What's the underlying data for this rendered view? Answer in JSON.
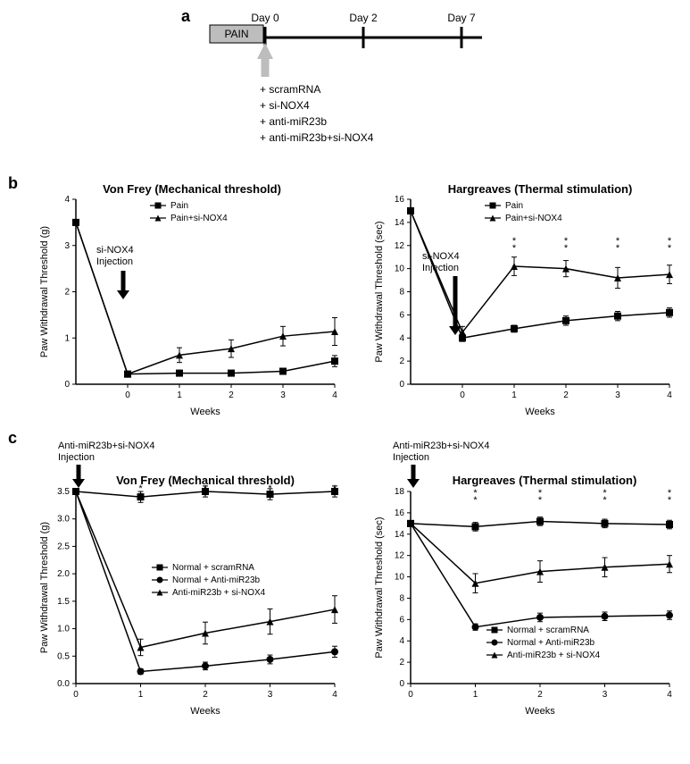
{
  "panel_a": {
    "label": "a",
    "pain_box": "PAIN",
    "ticks": [
      "Day 0",
      "Day 2",
      "Day 7"
    ],
    "conditions": [
      "+ scramRNA",
      "+ si-NOX4",
      "+ anti-miR23b",
      "+ anti-miR23b+si-NOX4"
    ],
    "colors": {
      "pain_fill": "#bdbdbd",
      "line": "#000000",
      "arrow_fill": "#bdbdbd"
    }
  },
  "panel_b": {
    "label": "b",
    "left": {
      "title": "Von Frey (Mechanical threshold)",
      "ylabel": "Paw Withdrawal Threshold (g)",
      "xlabel": "Weeks",
      "xvals": [
        -1,
        0,
        1,
        2,
        3,
        4
      ],
      "ylim": [
        0,
        4
      ],
      "ytick_step": 1,
      "injection_label": "si-NOX4\nInjection",
      "series": [
        {
          "name": "Pain",
          "marker": "square",
          "x": [
            -1,
            0,
            1,
            2,
            3,
            4
          ],
          "y": [
            3.5,
            0.22,
            0.24,
            0.24,
            0.28,
            0.5
          ],
          "err": [
            0,
            0.05,
            0.04,
            0.04,
            0.05,
            0.12
          ]
        },
        {
          "name": "Pain+si-NOX4",
          "marker": "triangle",
          "x": [
            -1,
            0,
            1,
            2,
            3,
            4
          ],
          "y": [
            3.5,
            0.22,
            0.63,
            0.77,
            1.04,
            1.14
          ],
          "err": [
            0,
            0.05,
            0.16,
            0.19,
            0.21,
            0.3
          ]
        }
      ],
      "sig_x": [
        1,
        2,
        3,
        4
      ]
    },
    "right": {
      "title": "Hargreaves (Thermal stimulation)",
      "ylabel": "Paw Withdrawal Threshold (sec)",
      "xlabel": "Weeks",
      "xvals": [
        -1,
        0,
        1,
        2,
        3,
        4
      ],
      "ylim": [
        0,
        16
      ],
      "ytick_step": 2,
      "injection_label": "si-NOX4\nInjection",
      "series": [
        {
          "name": "Pain",
          "marker": "square",
          "x": [
            -1,
            0,
            1,
            2,
            3,
            4
          ],
          "y": [
            15,
            4.0,
            4.8,
            5.5,
            5.9,
            6.2
          ],
          "err": [
            0,
            0.3,
            0.3,
            0.4,
            0.4,
            0.4
          ]
        },
        {
          "name": "Pain+si-NOX4",
          "marker": "triangle",
          "x": [
            -1,
            0,
            1,
            2,
            3,
            4
          ],
          "y": [
            15,
            4.5,
            10.2,
            10.0,
            9.2,
            9.5
          ],
          "err": [
            0,
            0.5,
            0.8,
            0.7,
            0.9,
            0.8
          ]
        }
      ],
      "sig_x": [
        1,
        2,
        3,
        4
      ]
    }
  },
  "panel_c": {
    "label": "c",
    "left": {
      "title": "Von Frey (Mechanical threshold)",
      "ylabel": "Paw Withdrawal Threshold (g)",
      "xlabel": "Weeks",
      "xvals": [
        0,
        1,
        2,
        3,
        4
      ],
      "ylim": [
        0,
        3.5
      ],
      "ytick_step": 0.5,
      "injection_label": "Anti-miR23b+si-NOX4\nInjection",
      "series": [
        {
          "name": "Normal + scramRNA",
          "marker": "square",
          "x": [
            0,
            1,
            2,
            3,
            4
          ],
          "y": [
            3.5,
            3.4,
            3.5,
            3.45,
            3.5
          ],
          "err": [
            0,
            0.1,
            0.1,
            0.1,
            0.1
          ]
        },
        {
          "name": "Normal + Anti-miR23b",
          "marker": "circle",
          "x": [
            0,
            1,
            2,
            3,
            4
          ],
          "y": [
            3.5,
            0.22,
            0.32,
            0.44,
            0.58
          ],
          "err": [
            0,
            0.05,
            0.07,
            0.08,
            0.1
          ]
        },
        {
          "name": "Anti-miR23b + si-NOX4",
          "marker": "triangle",
          "x": [
            0,
            1,
            2,
            3,
            4
          ],
          "y": [
            3.5,
            0.66,
            0.92,
            1.13,
            1.35
          ],
          "err": [
            0,
            0.15,
            0.2,
            0.23,
            0.25
          ]
        }
      ],
      "sig_x": [
        1,
        2,
        3,
        4
      ]
    },
    "right": {
      "title": "Hargreaves (Thermal stimulation)",
      "ylabel": "Paw Withdrawal Threshold (sec)",
      "xlabel": "Weeks",
      "xvals": [
        0,
        1,
        2,
        3,
        4
      ],
      "ylim": [
        0,
        18
      ],
      "ytick_step": 2,
      "injection_label": "Anti-miR23b+si-NOX4\nInjection",
      "series": [
        {
          "name": "Normal + scramRNA",
          "marker": "square",
          "x": [
            0,
            1,
            2,
            3,
            4
          ],
          "y": [
            15,
            14.7,
            15.2,
            15.0,
            14.9
          ],
          "err": [
            0,
            0.4,
            0.4,
            0.4,
            0.4
          ]
        },
        {
          "name": "Normal + Anti-miR23b",
          "marker": "circle",
          "x": [
            0,
            1,
            2,
            3,
            4
          ],
          "y": [
            15,
            5.3,
            6.2,
            6.3,
            6.4
          ],
          "err": [
            0,
            0.3,
            0.4,
            0.4,
            0.4
          ]
        },
        {
          "name": "Anti-miR23b + si-NOX4",
          "marker": "triangle",
          "x": [
            0,
            1,
            2,
            3,
            4
          ],
          "y": [
            15,
            9.4,
            10.5,
            10.9,
            11.2
          ],
          "err": [
            0,
            0.9,
            1.0,
            0.9,
            0.8
          ]
        }
      ],
      "sig_x": [
        1,
        2,
        3,
        4
      ]
    }
  },
  "style": {
    "axis_color": "#000000",
    "line_color": "#000000",
    "marker_fill": "#000000",
    "bg": "#ffffff",
    "axis_fontsize": 11,
    "title_fontsize": 13,
    "tick_fontsize": 10
  }
}
